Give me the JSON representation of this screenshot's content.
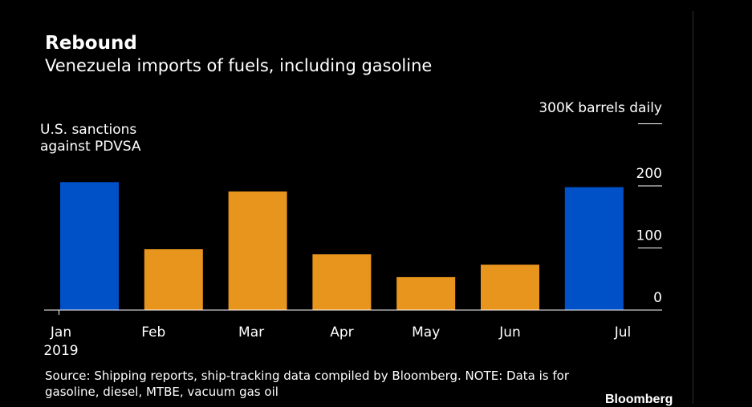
{
  "title": "Rebound",
  "subtitle": "Venezuela imports of fuels, including gasoline",
  "annotation": {
    "line1": "U.S. sanctions",
    "line2": "against PDVSA"
  },
  "unit_label": "300K barrels daily",
  "source": "Source: Shipping reports, ship-tracking data compiled by Bloomberg. NOTE: Data is for gasoline, diesel, MTBE, vacuum gas oil",
  "brand": "Bloomberg",
  "colors": {
    "highlight": "#0050c8",
    "default": "#e8951e",
    "axis": "#ffffff",
    "text": "#ffffff"
  },
  "chart_data": {
    "type": "bar",
    "title": "Rebound",
    "subtitle": "Venezuela imports of fuels, including gasoline",
    "categories": [
      "Jan",
      "Feb",
      "Mar",
      "Apr",
      "May",
      "Jun",
      "Jul"
    ],
    "year_label": "2019",
    "values": [
      206,
      98,
      191,
      90,
      53,
      73,
      198
    ],
    "highlight": [
      true,
      false,
      false,
      false,
      false,
      false,
      true
    ],
    "ylim": [
      0,
      300
    ],
    "yticks": [
      0,
      100,
      200,
      300
    ],
    "ytick_labels": [
      "0",
      "100",
      "200",
      "300K barrels daily"
    ],
    "xlabel": "",
    "ylabel": "300K barrels daily",
    "grid": false
  }
}
